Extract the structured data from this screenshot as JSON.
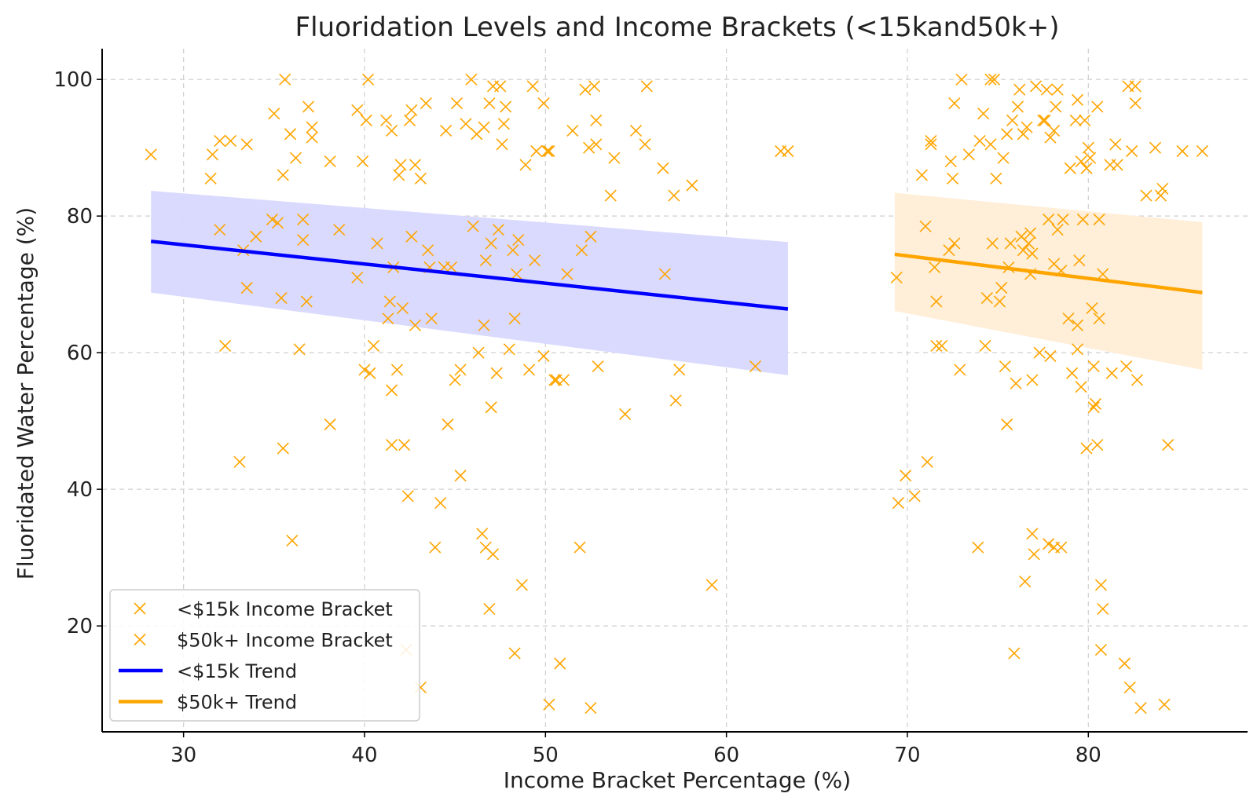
{
  "chart_data": {
    "type": "scatter",
    "title": "Fluoridation Levels and Income Brackets (<15kand50k+)",
    "xlabel": "Income Bracket Percentage (%)",
    "ylabel": "Fluoridated Water Percentage (%)",
    "xlim": [
      25.5,
      88.8
    ],
    "ylim": [
      4.5,
      104.5
    ],
    "xticks": [
      30,
      40,
      50,
      60,
      70,
      80
    ],
    "yticks": [
      20,
      40,
      60,
      80,
      100
    ],
    "grid": true,
    "legend_position": "lower-left",
    "colors": {
      "low": "#ffa500",
      "high": "#ffa500",
      "low_trend": "#0000ff",
      "high_trend": "#ffa500",
      "low_band": "#d8d8ff",
      "high_band": "#ffedd6"
    },
    "series": [
      {
        "name": "<$15k Income Bracket",
        "marker": "x",
        "points": [
          [
            28.2,
            89
          ],
          [
            31.5,
            85.5
          ],
          [
            31.6,
            89
          ],
          [
            32,
            91
          ],
          [
            32.6,
            91
          ],
          [
            33.5,
            90.5
          ],
          [
            32,
            78
          ],
          [
            32.3,
            61
          ],
          [
            33.1,
            44
          ],
          [
            33.5,
            69.5
          ],
          [
            33.3,
            75
          ],
          [
            34,
            77
          ],
          [
            34.9,
            79.5
          ],
          [
            35,
            95
          ],
          [
            35.2,
            79
          ],
          [
            35.4,
            68
          ],
          [
            35.5,
            46
          ],
          [
            35.6,
            100
          ],
          [
            35.5,
            86
          ],
          [
            35.9,
            92
          ],
          [
            36,
            32.5
          ],
          [
            36.2,
            88.5
          ],
          [
            36.4,
            60.5
          ],
          [
            36.6,
            79.5
          ],
          [
            36.6,
            76.5
          ],
          [
            36.8,
            67.5
          ],
          [
            36.9,
            96
          ],
          [
            37.1,
            91.5
          ],
          [
            37.1,
            93
          ],
          [
            38.1,
            49.5
          ],
          [
            38.1,
            88
          ],
          [
            38.6,
            78
          ],
          [
            39.6,
            71
          ],
          [
            39.6,
            95.5
          ],
          [
            39.9,
            88
          ],
          [
            40,
            57.5
          ],
          [
            40.1,
            94
          ],
          [
            40.3,
            57
          ],
          [
            40.2,
            100
          ],
          [
            40.5,
            61
          ],
          [
            40.7,
            76
          ],
          [
            41.2,
            94
          ],
          [
            41.3,
            65
          ],
          [
            41.4,
            67.5
          ],
          [
            41.5,
            92.5
          ],
          [
            41.5,
            46.5
          ],
          [
            41.5,
            54.5
          ],
          [
            41.6,
            72.5
          ],
          [
            41.8,
            57.5
          ],
          [
            41.9,
            86
          ],
          [
            42,
            87.5
          ],
          [
            42.1,
            66.5
          ],
          [
            42.2,
            46.5
          ],
          [
            42.4,
            39
          ],
          [
            42.5,
            94
          ],
          [
            42.6,
            95.5
          ],
          [
            42.6,
            77
          ],
          [
            42.8,
            87.5
          ],
          [
            42.8,
            64
          ],
          [
            43.1,
            85.5
          ],
          [
            43.4,
            96.5
          ],
          [
            43.5,
            75
          ],
          [
            43.6,
            72.5
          ],
          [
            43.7,
            65
          ],
          [
            43.9,
            31.5
          ],
          [
            44.2,
            38
          ],
          [
            44.4,
            72.5
          ],
          [
            44.5,
            92.5
          ],
          [
            44.6,
            49.5
          ],
          [
            44.8,
            72.5
          ],
          [
            45,
            56
          ],
          [
            45.1,
            96.5
          ],
          [
            45.3,
            42
          ],
          [
            45.3,
            57.5
          ],
          [
            45.6,
            93.5
          ],
          [
            45.9,
            100
          ],
          [
            46,
            78.5
          ],
          [
            46.2,
            92
          ],
          [
            46.3,
            60
          ],
          [
            46.5,
            33.5
          ],
          [
            46.6,
            93
          ],
          [
            46.6,
            64
          ],
          [
            46.7,
            73.5
          ],
          [
            46.7,
            31.5
          ],
          [
            46.9,
            96.5
          ],
          [
            46.9,
            22.5
          ],
          [
            47,
            76
          ],
          [
            47.1,
            30.5
          ],
          [
            47,
            52
          ],
          [
            47.1,
            99
          ],
          [
            47.3,
            57
          ],
          [
            47.4,
            78
          ],
          [
            47.5,
            99
          ],
          [
            47.6,
            90.5
          ],
          [
            47.7,
            93.5
          ],
          [
            47.8,
            96
          ],
          [
            48,
            60.5
          ],
          [
            48.2,
            75
          ],
          [
            48.3,
            65
          ],
          [
            48.3,
            16
          ],
          [
            48.4,
            71.5
          ],
          [
            48.5,
            76.5
          ],
          [
            48.7,
            26
          ],
          [
            48.9,
            87.5
          ],
          [
            49.1,
            57.5
          ],
          [
            49.3,
            99
          ],
          [
            49.4,
            73.5
          ],
          [
            49.5,
            89.5
          ],
          [
            49.9,
            96.5
          ],
          [
            49.9,
            59.5
          ],
          [
            50.1,
            89.5
          ],
          [
            50.2,
            8.5
          ],
          [
            50.5,
            56
          ],
          [
            50.6,
            56
          ],
          [
            50.8,
            14.5
          ],
          [
            51,
            56
          ],
          [
            51.2,
            71.5
          ],
          [
            51.5,
            92.5
          ],
          [
            51.9,
            31.5
          ],
          [
            52,
            75
          ],
          [
            52.2,
            98.5
          ],
          [
            52.4,
            90
          ],
          [
            52.5,
            77
          ],
          [
            52.5,
            8
          ],
          [
            52.7,
            99
          ],
          [
            52.8,
            94
          ],
          [
            52.8,
            90.5
          ],
          [
            52.9,
            58
          ],
          [
            53.8,
            88.5
          ],
          [
            54.4,
            51
          ],
          [
            55,
            92.5
          ],
          [
            55.5,
            90.5
          ],
          [
            56.5,
            87
          ],
          [
            56.6,
            71.5
          ],
          [
            57.2,
            53
          ],
          [
            57.4,
            57.5
          ],
          [
            58.1,
            84.5
          ],
          [
            59.2,
            26
          ],
          [
            61.6,
            58
          ],
          [
            63,
            89.5
          ],
          [
            63.4,
            89.5
          ],
          [
            57.1,
            83
          ],
          [
            55.6,
            99
          ],
          [
            53.6,
            83
          ],
          [
            50.2,
            89.5
          ],
          [
            42.3,
            16.5
          ],
          [
            43.1,
            11
          ]
        ]
      },
      {
        "name": "$50k+ Income Bracket",
        "marker": "x",
        "points": [
          [
            69.4,
            71
          ],
          [
            69.5,
            38
          ],
          [
            69.9,
            42
          ],
          [
            70.4,
            39
          ],
          [
            70.8,
            86
          ],
          [
            71,
            78.5
          ],
          [
            71.1,
            44
          ],
          [
            71.3,
            90.5
          ],
          [
            71.5,
            72.5
          ],
          [
            71.6,
            61
          ],
          [
            71.9,
            61
          ],
          [
            71.6,
            67.5
          ],
          [
            72.3,
            75
          ],
          [
            72.4,
            88
          ],
          [
            72.5,
            85.5
          ],
          [
            72.6,
            96.5
          ],
          [
            72.6,
            76
          ],
          [
            72.9,
            57.5
          ],
          [
            73,
            100
          ],
          [
            73.9,
            31.5
          ],
          [
            74,
            91
          ],
          [
            74.2,
            95
          ],
          [
            74.3,
            61
          ],
          [
            74.4,
            68
          ],
          [
            74.6,
            100
          ],
          [
            74.7,
            76
          ],
          [
            74.9,
            85.5
          ],
          [
            74.8,
            100
          ],
          [
            75.1,
            67.5
          ],
          [
            75.2,
            69.5
          ],
          [
            75.3,
            88.5
          ],
          [
            75.4,
            58
          ],
          [
            75.5,
            92
          ],
          [
            75.5,
            49.5
          ],
          [
            75.6,
            72.5
          ],
          [
            75.7,
            76
          ],
          [
            75.8,
            94
          ],
          [
            75.9,
            16
          ],
          [
            76,
            55.5
          ],
          [
            76.1,
            96
          ],
          [
            76.2,
            98.5
          ],
          [
            76.3,
            77
          ],
          [
            76.4,
            92
          ],
          [
            76.5,
            26.5
          ],
          [
            76.6,
            93
          ],
          [
            76.7,
            76
          ],
          [
            76.8,
            77.5
          ],
          [
            76.8,
            71.5
          ],
          [
            76.9,
            56
          ],
          [
            76.9,
            33.5
          ],
          [
            77,
            30.5
          ],
          [
            77.1,
            99
          ],
          [
            77.3,
            60
          ],
          [
            77.5,
            94
          ],
          [
            77.6,
            94
          ],
          [
            77.7,
            98.5
          ],
          [
            77.8,
            32
          ],
          [
            77.9,
            91.5
          ],
          [
            77.9,
            59.5
          ],
          [
            78.1,
            31.5
          ],
          [
            78.1,
            73
          ],
          [
            78.2,
            96
          ],
          [
            78.3,
            78
          ],
          [
            78.3,
            98.5
          ],
          [
            78.5,
            72
          ],
          [
            78.5,
            31.5
          ],
          [
            78.6,
            79.5
          ],
          [
            78.9,
            65
          ],
          [
            79,
            87
          ],
          [
            79.1,
            57
          ],
          [
            79.3,
            94
          ],
          [
            79.4,
            60.5
          ],
          [
            79.4,
            64
          ],
          [
            79.5,
            73.5
          ],
          [
            79.6,
            88
          ],
          [
            79.6,
            55
          ],
          [
            79.7,
            79.5
          ],
          [
            79.8,
            94
          ],
          [
            79.9,
            46
          ],
          [
            79.9,
            87
          ],
          [
            80,
            90
          ],
          [
            80.1,
            88.5
          ],
          [
            80.2,
            66.5
          ],
          [
            80.3,
            58
          ],
          [
            80.3,
            52
          ],
          [
            80.4,
            52.5
          ],
          [
            80.5,
            96
          ],
          [
            80.5,
            46.5
          ],
          [
            80.6,
            79.5
          ],
          [
            80.6,
            65
          ],
          [
            80.7,
            16.5
          ],
          [
            80.7,
            26
          ],
          [
            80.8,
            22.5
          ],
          [
            80.8,
            71.5
          ],
          [
            81.2,
            87.5
          ],
          [
            81.3,
            57
          ],
          [
            81.5,
            90.5
          ],
          [
            81.6,
            87.5
          ],
          [
            82,
            14.5
          ],
          [
            82.1,
            58
          ],
          [
            82.2,
            99
          ],
          [
            82.3,
            11
          ],
          [
            82.4,
            89.5
          ],
          [
            82.6,
            99
          ],
          [
            82.6,
            96.5
          ],
          [
            82.7,
            56
          ],
          [
            82.9,
            8
          ],
          [
            83.2,
            83
          ],
          [
            83.7,
            90
          ],
          [
            84,
            83
          ],
          [
            84.1,
            84
          ],
          [
            84.2,
            8.5
          ],
          [
            84.4,
            46.5
          ],
          [
            85.2,
            89.5
          ],
          [
            86.3,
            89.5
          ],
          [
            79.4,
            97
          ],
          [
            78.1,
            92.5
          ],
          [
            76.9,
            74.5
          ],
          [
            77.8,
            79.5
          ],
          [
            74.6,
            90.5
          ],
          [
            71.3,
            91
          ],
          [
            76.4,
            75
          ],
          [
            73.4,
            89
          ]
        ]
      }
    ],
    "trends": [
      {
        "name": "<$15k Trend",
        "x": [
          28.2,
          63.4
        ],
        "y": [
          76.3,
          66.4
        ],
        "band_upper": [
          83.7,
          76.2
        ],
        "band_lower": [
          68.8,
          56.7
        ]
      },
      {
        "name": "$50k+ Trend",
        "x": [
          69.3,
          86.3
        ],
        "y": [
          74.4,
          68.8
        ],
        "band_upper": [
          83.4,
          79.1
        ],
        "band_lower": [
          66.1,
          57.5
        ]
      }
    ]
  }
}
